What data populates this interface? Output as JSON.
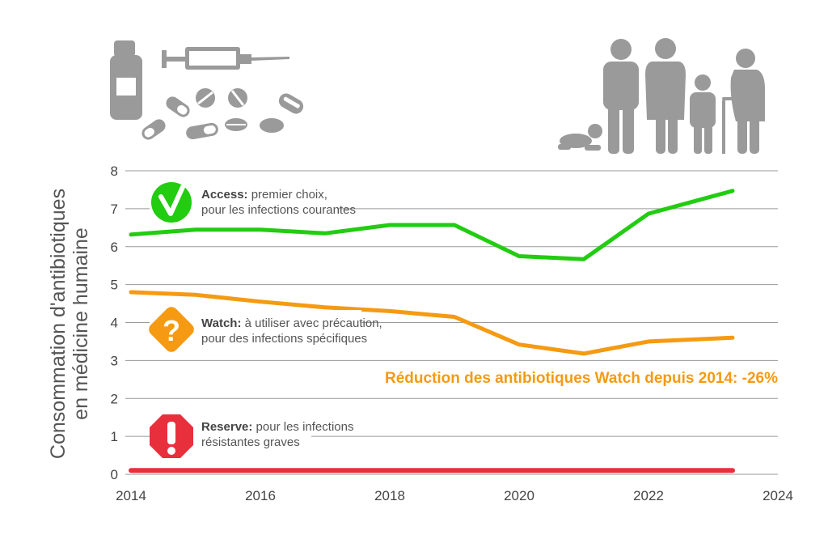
{
  "chart_data": {
    "type": "line",
    "ylabel_line1": "Consommation d'antibiotiques",
    "ylabel_line2": "en médicine humaine",
    "xlim": [
      2014,
      2024
    ],
    "ylim": [
      0,
      8
    ],
    "x_ticks": [
      "2014",
      "2016",
      "2018",
      "2020",
      "2022",
      "2024"
    ],
    "y_ticks": [
      "0",
      "1",
      "2",
      "3",
      "4",
      "5",
      "6",
      "7",
      "8"
    ],
    "grid": true,
    "x": [
      2014,
      2015,
      2016,
      2017,
      2018,
      2019,
      2020,
      2021,
      2022,
      2023.3
    ],
    "series": [
      {
        "key": "access",
        "color": "#22cc11",
        "values": [
          6.32,
          6.45,
          6.45,
          6.35,
          6.57,
          6.57,
          5.75,
          5.67,
          6.87,
          7.47
        ]
      },
      {
        "key": "watch",
        "color": "#f59a12",
        "values": [
          4.8,
          4.73,
          4.55,
          4.4,
          4.3,
          4.15,
          3.42,
          3.18,
          3.5,
          3.6
        ]
      },
      {
        "key": "reserve",
        "color": "#e8303c",
        "values": [
          0.1,
          0.1,
          0.1,
          0.1,
          0.1,
          0.1,
          0.1,
          0.1,
          0.1,
          0.1
        ]
      }
    ],
    "annotations": {
      "access": {
        "bold": "Access:",
        "text1": " premier choix,",
        "text2": "pour les infections courantes"
      },
      "watch": {
        "bold": "Watch:",
        "text1": " à utiliser avec précaution,",
        "text2": "pour des infections spécifiques"
      },
      "reserve": {
        "bold": "Reserve:",
        "text1": " pour les infections",
        "text2": "résistantes graves"
      }
    },
    "note": "Réduction des antibiotiques Watch depuis 2014: -26%",
    "note_color": "#f59a12"
  },
  "icons": {
    "medicine": "medicine-vial-syringe-pills-icon",
    "population": "family-population-icon",
    "access": "checkmark-circle-icon",
    "watch": "question-diamond-icon",
    "reserve": "exclamation-octagon-icon"
  }
}
